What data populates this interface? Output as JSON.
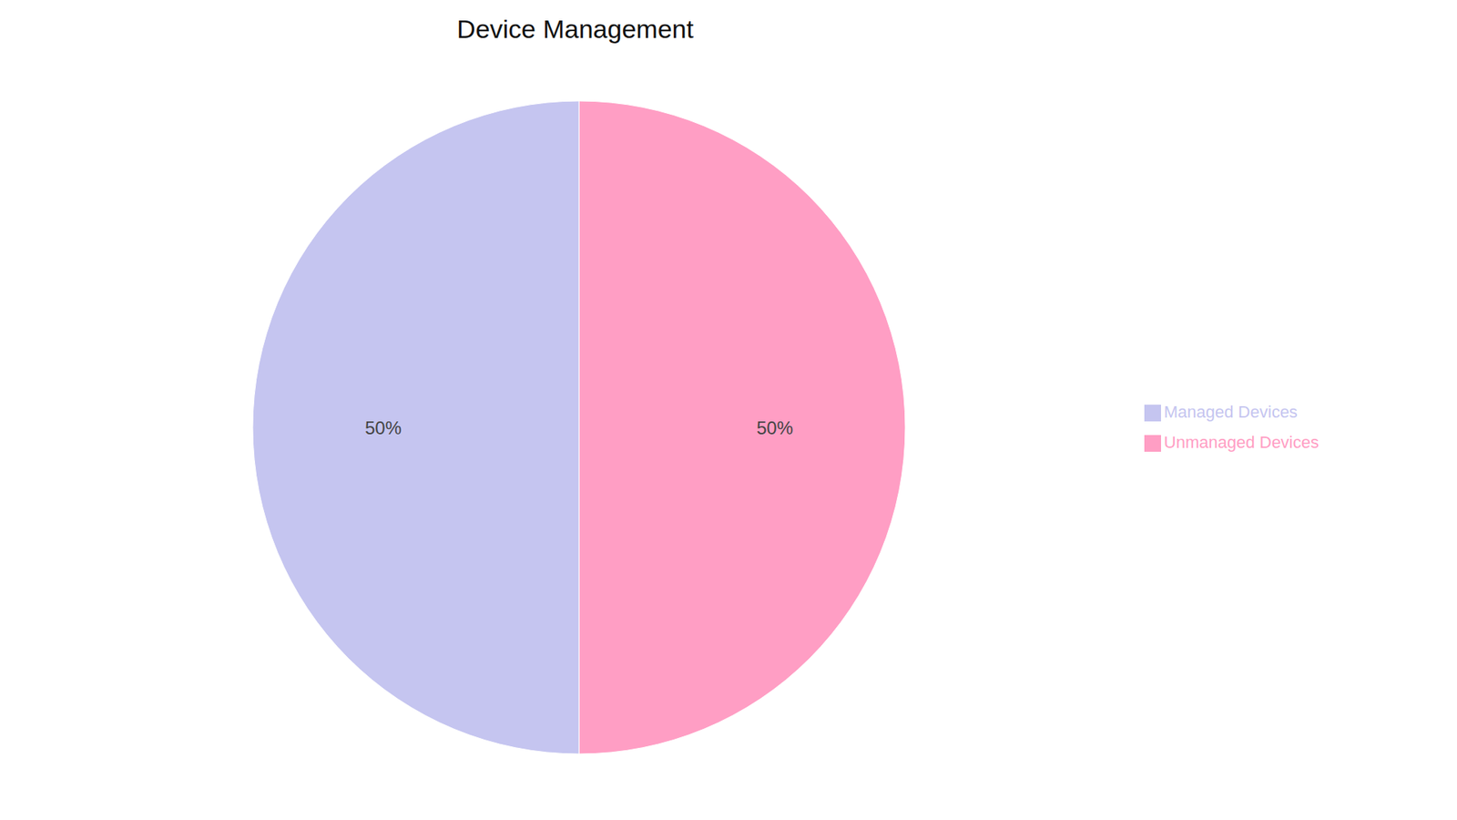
{
  "chart_data": {
    "type": "pie",
    "title": "Device Management",
    "categories": [
      "Unmanaged Devices",
      "Managed Devices"
    ],
    "values": [
      50,
      50
    ],
    "value_labels": [
      "50%",
      "50%"
    ],
    "colors": [
      "#FF9EC4",
      "#C5C5F0"
    ],
    "data_labels": true,
    "legend": "right"
  }
}
